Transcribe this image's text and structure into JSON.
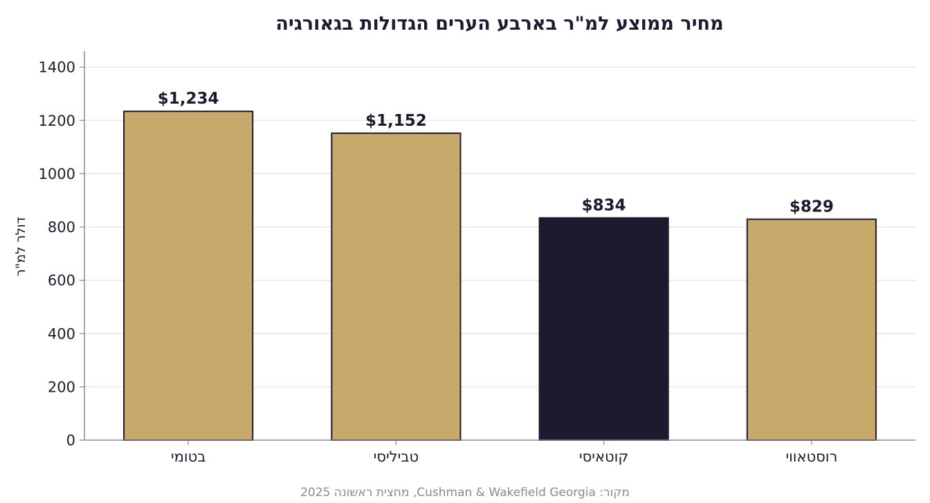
{
  "chart_data": {
    "type": "bar",
    "title": "מחיר ממוצע למ\"ר בארבע הערים הגדולות בגאורגיה",
    "ylabel": "דולר למ\"ר",
    "xlabel": "",
    "categories": [
      "בטומי",
      "טביליסי",
      "קוטאיסי",
      "רוסטאווי"
    ],
    "values": [
      1234,
      1152,
      834,
      829
    ],
    "value_labels": [
      "$1,234",
      "$1,152",
      "$834",
      "$829"
    ],
    "ylim": [
      0,
      1460
    ],
    "yticks": [
      0,
      200,
      400,
      600,
      800,
      1000,
      1200,
      1400
    ],
    "grid": "horizontal",
    "highlight_index": 2,
    "colors": {
      "bar": "#c8a96c",
      "highlight": "#1c1a2e",
      "edge": "#1c1a2e",
      "grid": "#e3e3e3",
      "axis": "#888888"
    },
    "source": "מקור: Cushman & Wakefield Georgia, מחצית ראשונה 2025"
  }
}
